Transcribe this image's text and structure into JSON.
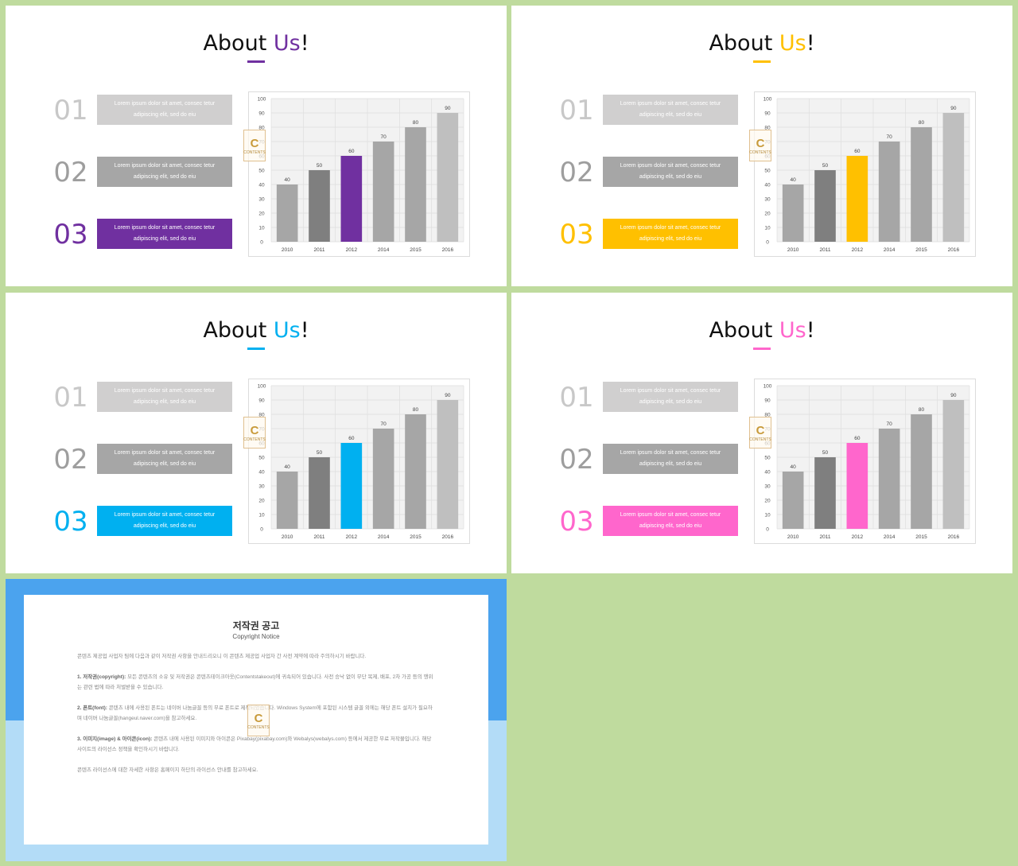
{
  "title": {
    "prefix": "About ",
    "highlight": "Us",
    "suffix": "!"
  },
  "items": [
    {
      "num": "01",
      "text_line1": "Lorem ipsum dolor sit amet, consec tetur",
      "text_line2": "adipiscing elit, sed do eiu"
    },
    {
      "num": "02",
      "text_line1": "Lorem ipsum dolor sit amet, consec tetur",
      "text_line2": "adipiscing elit, sed do eiu"
    },
    {
      "num": "03",
      "text_line1": "Lorem ipsum dolor sit amet, consec tetur",
      "text_line2": "adipiscing elit, sed do eiu"
    }
  ],
  "colors": {
    "item01_bg": "#d0cfcf",
    "item01_num": "#c8c8c8",
    "item02_bg": "#a6a6a6",
    "item02_num": "#9e9e9e",
    "chart_bars": [
      "#a6a6a6",
      "#7f7f7f",
      null,
      "#a6a6a6",
      "#a6a6a6",
      "#bfbfbf"
    ]
  },
  "slides": [
    {
      "accent": "#7030a0"
    },
    {
      "accent": "#ffc000"
    },
    {
      "accent": "#00b0f0"
    },
    {
      "accent": "#ff66cc"
    }
  ],
  "chart_data": {
    "type": "bar",
    "categories": [
      "2010",
      "2011",
      "2012",
      "2014",
      "2015",
      "2016"
    ],
    "values": [
      40,
      50,
      60,
      70,
      80,
      90
    ],
    "ylim": [
      0,
      100
    ],
    "yticks": [
      "0",
      "10",
      "20",
      "30",
      "40",
      "50",
      "60",
      "70",
      "80",
      "90",
      "100"
    ],
    "grid": true,
    "highlight_index": 2
  },
  "stamp": {
    "letter": "C",
    "caption": "CONTENTS"
  },
  "notice": {
    "title": "저작권 공고",
    "subtitle": "Copyright Notice",
    "intro": "콘텐츠 제공업 사업자 팀에 다음과 같이 저작권 사항을 안내드리오니 이 콘텐츠 제공업 사업자 간 사전 계약에 따라 주의하시기 바랍니다.",
    "section1_label": "1. 저작권(copyright):",
    "section1_body": "모든 콘텐츠의 소유 및 저작권은 콘텐츠테이크아웃(Contentstakeout)에 귀속되어 있습니다. 사전 승낙 없이 무단 복제, 배포, 2차 가공 등의 행위는 관련 법에 따라 처벌받을 수 있습니다.",
    "section2_label": "2. 폰트(font):",
    "section2_body": "콘텐츠 내에 사용된 폰트는 네이버 나눔글꼴 등의 무료 폰트로 제작되었습니다. Windows System에 포함된 시스템 글꼴 외에는 해당 폰트 설치가 필요하며 네이버 나눔글꼴(hangeul.naver.com)을 참고하세요.",
    "section3_label": "3. 이미지(image) & 아이콘(icon):",
    "section3_body": "콘텐츠 내에 사용된 이미지와 아이콘은 Pixabay(pixabay.com)와 Webalys(webalys.com) 등에서 제공한 무료 저작물입니다. 해당 사이트의 라이선스 정책을 확인하시기 바랍니다.",
    "outro": "콘텐츠 라이선스에 대한 자세한 사항은 홈페이지 하단의 라이선스 안내를 참고하세요."
  }
}
